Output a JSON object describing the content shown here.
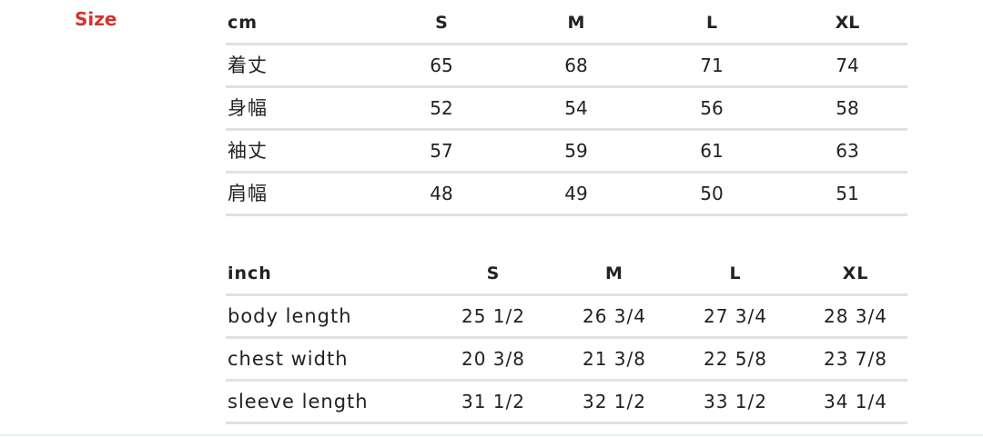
{
  "title": "Size",
  "cm_table": {
    "headers": [
      "cm",
      "S",
      "M",
      "L",
      "XL"
    ],
    "rows": [
      [
        "着丈",
        "65",
        "68",
        "71",
        "74"
      ],
      [
        "身幅",
        "52",
        "54",
        "56",
        "58"
      ],
      [
        "袖丈",
        "57",
        "59",
        "61",
        "63"
      ],
      [
        "肩幅",
        "48",
        "49",
        "50",
        "51"
      ]
    ]
  },
  "inch_table": {
    "headers": [
      "inch",
      "S",
      "M",
      "L",
      "XL"
    ],
    "rows": [
      [
        "body length",
        "25 1/2",
        "26 3/4",
        "27 3/4",
        "28 3/4"
      ],
      [
        "chest width",
        "20 3/8",
        "21 3/8",
        "22 5/8",
        "23 7/8"
      ],
      [
        "sleeve length",
        "31 1/2",
        "32 1/2",
        "33 1/2",
        "34 1/4"
      ]
    ]
  },
  "colors": {
    "title": "#d9302c",
    "rule": "#dfe1e3"
  }
}
